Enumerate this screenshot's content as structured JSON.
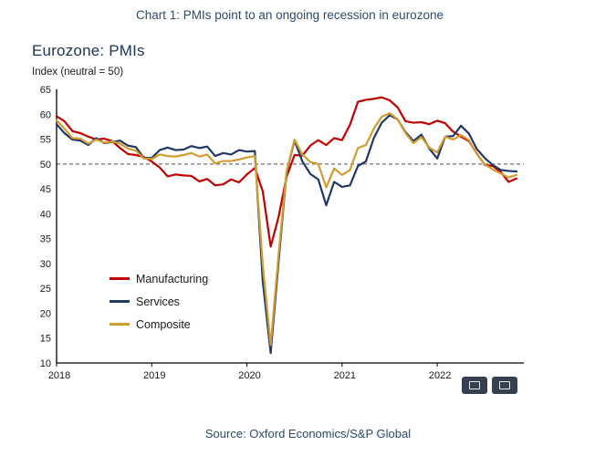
{
  "page": {
    "title": "Chart 1: PMIs point to an ongoing recession in eurozone",
    "source": "Source: Oxford Economics/S&P Global"
  },
  "chart": {
    "heading": "Eurozone: PMIs",
    "subtitle": "Index (neutral = 50)"
  },
  "colors": {
    "title_text": "#2E4A6B",
    "heading_text": "#1C3456",
    "axis": "#000000",
    "neutral_dash": "#4d4d4d"
  },
  "chart_data": {
    "type": "line",
    "title": "Eurozone: PMIs",
    "ylabel": "Index (neutral = 50)",
    "ylim": [
      10,
      65
    ],
    "ytick_step": 5,
    "grid": false,
    "neutral_line": 50,
    "x_tick_labels": [
      "2018",
      "2019",
      "2020",
      "2021",
      "2022"
    ],
    "x_frequency": "monthly",
    "x_range": "Jan 2018 - Nov 2022",
    "legend_position": "inside-left",
    "series": [
      {
        "name": "Manufacturing",
        "color": "#C00000",
        "values": [
          59.6,
          58.6,
          56.6,
          56.2,
          55.5,
          54.9,
          55.1,
          54.6,
          53.2,
          52.0,
          51.8,
          51.4,
          50.5,
          49.3,
          47.5,
          47.9,
          47.7,
          47.6,
          46.5,
          47.0,
          45.7,
          45.9,
          46.9,
          46.3,
          47.9,
          49.2,
          44.5,
          33.4,
          39.4,
          47.4,
          51.8,
          51.7,
          53.7,
          54.8,
          53.8,
          55.2,
          54.8,
          57.9,
          62.5,
          62.9,
          63.1,
          63.4,
          62.8,
          61.4,
          58.6,
          58.3,
          58.4,
          58.0,
          58.7,
          58.2,
          56.5,
          55.5,
          54.6,
          52.1,
          49.8,
          49.6,
          48.4,
          46.4,
          47.1
        ]
      },
      {
        "name": "Services",
        "color": "#1F3864",
        "values": [
          58.0,
          56.2,
          54.9,
          54.7,
          53.8,
          55.2,
          54.2,
          54.4,
          54.7,
          53.7,
          53.4,
          51.2,
          51.2,
          52.8,
          53.3,
          52.8,
          52.9,
          53.6,
          53.2,
          53.5,
          51.6,
          52.2,
          51.9,
          52.8,
          52.5,
          52.6,
          26.4,
          12.0,
          30.5,
          48.3,
          54.7,
          50.5,
          48.0,
          46.9,
          41.7,
          46.4,
          45.4,
          45.7,
          49.6,
          50.5,
          55.2,
          58.3,
          59.8,
          59.0,
          56.4,
          54.6,
          55.9,
          53.1,
          51.1,
          55.5,
          55.6,
          57.7,
          56.1,
          53.0,
          51.2,
          49.8,
          48.8,
          48.6,
          48.5
        ]
      },
      {
        "name": "Composite",
        "color": "#D39C2F",
        "values": [
          58.8,
          57.1,
          55.2,
          55.1,
          54.1,
          54.9,
          54.3,
          54.5,
          54.1,
          53.1,
          52.7,
          51.1,
          51.0,
          51.9,
          51.6,
          51.5,
          51.8,
          52.2,
          51.5,
          51.9,
          50.1,
          50.6,
          50.6,
          50.9,
          51.3,
          51.6,
          29.7,
          13.6,
          31.9,
          48.5,
          54.9,
          51.9,
          50.4,
          50.0,
          45.3,
          49.1,
          47.8,
          48.8,
          53.2,
          53.8,
          57.1,
          59.5,
          60.2,
          59.0,
          56.2,
          54.2,
          55.4,
          53.3,
          52.3,
          55.5,
          54.9,
          55.8,
          54.8,
          52.0,
          49.9,
          48.9,
          48.1,
          47.3,
          47.8
        ]
      }
    ]
  }
}
